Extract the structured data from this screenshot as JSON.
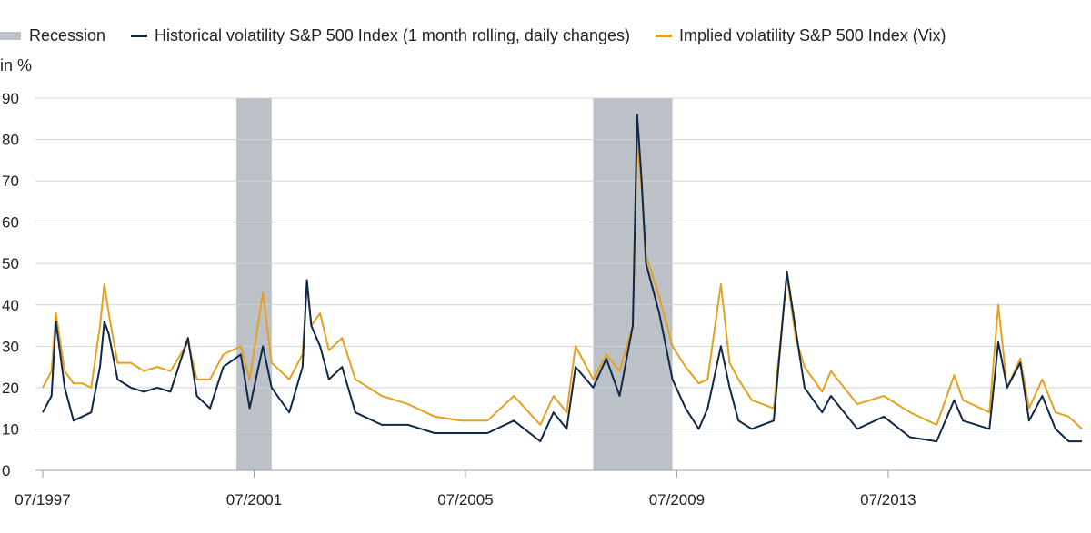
{
  "legend": {
    "recession": "Recession",
    "hist": "Historical volatility S&P 500 Index (1 month rolling, daily changes)",
    "implied": "Implied volatility S&P 500 Index (Vix)"
  },
  "unit_label": "in %",
  "colors": {
    "recession": "#bcc1c8",
    "hist": "#0f2847",
    "implied": "#e6a020",
    "grid": "#cfd3d8",
    "axis": "#9aa0a6"
  },
  "chart_data": {
    "type": "line",
    "ylabel": "in %",
    "xlabel": "",
    "ylim": [
      0,
      90
    ],
    "yticks": [
      0,
      10,
      20,
      30,
      40,
      50,
      60,
      70,
      80,
      90
    ],
    "xlim": [
      "1997-07",
      "2017-03"
    ],
    "xticks": [
      "07/1997",
      "07/2001",
      "07/2005",
      "07/2009",
      "07/2013"
    ],
    "recessions": [
      [
        "2001-03",
        "2001-11"
      ],
      [
        "2007-12",
        "2009-06"
      ]
    ],
    "series": [
      {
        "name": "Historical volatility S&P 500 Index (1 month rolling, daily changes)",
        "key": "hist",
        "points": [
          [
            "1997-07",
            14
          ],
          [
            "1997-09",
            18
          ],
          [
            "1997-10",
            36
          ],
          [
            "1997-12",
            20
          ],
          [
            "1998-02",
            12
          ],
          [
            "1998-04",
            13
          ],
          [
            "1998-06",
            14
          ],
          [
            "1998-08",
            25
          ],
          [
            "1998-09",
            36
          ],
          [
            "1998-10",
            33
          ],
          [
            "1998-12",
            22
          ],
          [
            "1999-03",
            20
          ],
          [
            "1999-06",
            19
          ],
          [
            "1999-09",
            20
          ],
          [
            "1999-12",
            19
          ],
          [
            "2000-04",
            32
          ],
          [
            "2000-06",
            18
          ],
          [
            "2000-09",
            15
          ],
          [
            "2000-12",
            25
          ],
          [
            "2001-04",
            28
          ],
          [
            "2001-06",
            15
          ],
          [
            "2001-09",
            30
          ],
          [
            "2001-11",
            20
          ],
          [
            "2002-03",
            14
          ],
          [
            "2002-06",
            25
          ],
          [
            "2002-07",
            46
          ],
          [
            "2002-08",
            35
          ],
          [
            "2002-10",
            30
          ],
          [
            "2002-12",
            22
          ],
          [
            "2003-03",
            25
          ],
          [
            "2003-06",
            14
          ],
          [
            "2003-12",
            11
          ],
          [
            "2004-06",
            11
          ],
          [
            "2004-12",
            9
          ],
          [
            "2005-06",
            9
          ],
          [
            "2005-12",
            9
          ],
          [
            "2006-06",
            12
          ],
          [
            "2006-12",
            7
          ],
          [
            "2007-03",
            14
          ],
          [
            "2007-06",
            10
          ],
          [
            "2007-08",
            25
          ],
          [
            "2007-12",
            20
          ],
          [
            "2008-03",
            27
          ],
          [
            "2008-06",
            18
          ],
          [
            "2008-09",
            35
          ],
          [
            "2008-10",
            86
          ],
          [
            "2008-11",
            70
          ],
          [
            "2008-12",
            50
          ],
          [
            "2009-03",
            38
          ],
          [
            "2009-06",
            22
          ],
          [
            "2009-09",
            15
          ],
          [
            "2009-12",
            10
          ],
          [
            "2010-02",
            15
          ],
          [
            "2010-05",
            30
          ],
          [
            "2010-07",
            20
          ],
          [
            "2010-09",
            12
          ],
          [
            "2010-12",
            10
          ],
          [
            "2011-05",
            12
          ],
          [
            "2011-08",
            48
          ],
          [
            "2011-10",
            34
          ],
          [
            "2011-12",
            20
          ],
          [
            "2012-04",
            14
          ],
          [
            "2012-06",
            18
          ],
          [
            "2012-12",
            10
          ],
          [
            "2013-06",
            13
          ],
          [
            "2013-12",
            8
          ],
          [
            "2014-06",
            7
          ],
          [
            "2014-10",
            17
          ],
          [
            "2014-12",
            12
          ],
          [
            "2015-06",
            10
          ],
          [
            "2015-08",
            31
          ],
          [
            "2015-10",
            20
          ],
          [
            "2016-01",
            26
          ],
          [
            "2016-03",
            12
          ],
          [
            "2016-06",
            18
          ],
          [
            "2016-09",
            10
          ],
          [
            "2016-12",
            7
          ],
          [
            "2017-03",
            7
          ]
        ]
      },
      {
        "name": "Implied volatility S&P 500 Index (Vix)",
        "key": "implied",
        "points": [
          [
            "1997-07",
            20
          ],
          [
            "1997-09",
            24
          ],
          [
            "1997-10",
            38
          ],
          [
            "1997-12",
            24
          ],
          [
            "1998-02",
            21
          ],
          [
            "1998-04",
            21
          ],
          [
            "1998-06",
            20
          ],
          [
            "1998-08",
            35
          ],
          [
            "1998-09",
            45
          ],
          [
            "1998-10",
            38
          ],
          [
            "1998-12",
            26
          ],
          [
            "1999-03",
            26
          ],
          [
            "1999-06",
            24
          ],
          [
            "1999-09",
            25
          ],
          [
            "1999-12",
            24
          ],
          [
            "2000-04",
            31
          ],
          [
            "2000-06",
            22
          ],
          [
            "2000-09",
            22
          ],
          [
            "2000-12",
            28
          ],
          [
            "2001-04",
            30
          ],
          [
            "2001-06",
            22
          ],
          [
            "2001-09",
            43
          ],
          [
            "2001-11",
            26
          ],
          [
            "2002-03",
            22
          ],
          [
            "2002-06",
            28
          ],
          [
            "2002-07",
            45
          ],
          [
            "2002-08",
            35
          ],
          [
            "2002-10",
            38
          ],
          [
            "2002-12",
            29
          ],
          [
            "2003-03",
            32
          ],
          [
            "2003-06",
            22
          ],
          [
            "2003-12",
            18
          ],
          [
            "2004-06",
            16
          ],
          [
            "2004-12",
            13
          ],
          [
            "2005-06",
            12
          ],
          [
            "2005-12",
            12
          ],
          [
            "2006-06",
            18
          ],
          [
            "2006-12",
            11
          ],
          [
            "2007-03",
            18
          ],
          [
            "2007-06",
            14
          ],
          [
            "2007-08",
            30
          ],
          [
            "2007-12",
            22
          ],
          [
            "2008-03",
            28
          ],
          [
            "2008-06",
            24
          ],
          [
            "2008-09",
            35
          ],
          [
            "2008-10",
            80
          ],
          [
            "2008-11",
            68
          ],
          [
            "2008-12",
            52
          ],
          [
            "2009-03",
            42
          ],
          [
            "2009-06",
            30
          ],
          [
            "2009-09",
            25
          ],
          [
            "2009-12",
            21
          ],
          [
            "2010-02",
            22
          ],
          [
            "2010-05",
            45
          ],
          [
            "2010-07",
            26
          ],
          [
            "2010-09",
            22
          ],
          [
            "2010-12",
            17
          ],
          [
            "2011-05",
            15
          ],
          [
            "2011-08",
            47
          ],
          [
            "2011-10",
            32
          ],
          [
            "2011-12",
            25
          ],
          [
            "2012-04",
            19
          ],
          [
            "2012-06",
            24
          ],
          [
            "2012-12",
            16
          ],
          [
            "2013-06",
            18
          ],
          [
            "2013-12",
            14
          ],
          [
            "2014-06",
            11
          ],
          [
            "2014-10",
            23
          ],
          [
            "2014-12",
            17
          ],
          [
            "2015-06",
            14
          ],
          [
            "2015-08",
            40
          ],
          [
            "2015-10",
            20
          ],
          [
            "2016-01",
            27
          ],
          [
            "2016-03",
            15
          ],
          [
            "2016-06",
            22
          ],
          [
            "2016-09",
            14
          ],
          [
            "2016-12",
            13
          ],
          [
            "2017-03",
            10
          ]
        ]
      }
    ]
  }
}
